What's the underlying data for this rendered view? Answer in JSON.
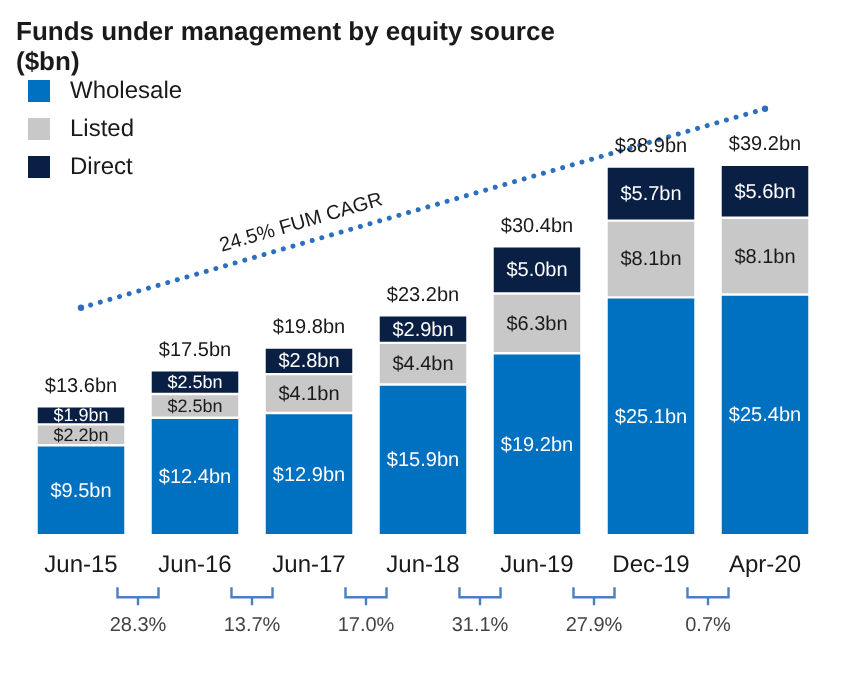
{
  "chart_data": {
    "type": "bar",
    "title": "Funds under management by equity source ($bn)",
    "categories": [
      "Jun-15",
      "Jun-16",
      "Jun-17",
      "Jun-18",
      "Jun-19",
      "Dec-19",
      "Apr-20"
    ],
    "stacked": true,
    "legend": "top left",
    "tick_labels": "x",
    "grid": false,
    "series": [
      {
        "name": "Wholesale",
        "color": "#0070c0",
        "values": [
          9.5,
          12.4,
          12.9,
          15.9,
          19.2,
          25.1,
          25.4
        ],
        "value_labels": [
          "$9.5bn",
          "$12.4bn",
          "$12.9bn",
          "$15.9bn",
          "$19.2bn",
          "$25.1bn",
          "$25.4bn"
        ]
      },
      {
        "name": "Listed",
        "color": "#c8c8c8",
        "values": [
          2.2,
          2.5,
          4.1,
          4.4,
          6.3,
          8.1,
          8.1
        ],
        "value_labels": [
          "$2.2bn",
          "$2.5bn",
          "$4.1bn",
          "$4.4bn",
          "$6.3bn",
          "$8.1bn",
          "$8.1bn"
        ]
      },
      {
        "name": "Direct",
        "color": "#0a1f44",
        "values": [
          1.9,
          2.5,
          2.8,
          2.9,
          5.0,
          5.7,
          5.6
        ],
        "value_labels": [
          "$1.9bn",
          "$2.5bn",
          "$2.8bn",
          "$2.9bn",
          "$5.0bn",
          "$5.7bn",
          "$5.6bn"
        ]
      },
      {
        "type": "line",
        "color": "#2a6fc0",
        "line_style": "dotted",
        "marker": "circle",
        "values": [
          24,
          null,
          null,
          null,
          null,
          null,
          45
        ]
      }
    ],
    "totals": [
      "$13.6bn",
      "$17.5bn",
      "$19.8bn",
      "$23.2bn",
      "$30.4bn",
      "$38.9bn",
      "$39.2bn"
    ],
    "annotations": [
      "24.5% FUM CAGR",
      "28.3%",
      "13.7%",
      "17.0%",
      "31.1%",
      "27.9%",
      "0.7%"
    ]
  }
}
